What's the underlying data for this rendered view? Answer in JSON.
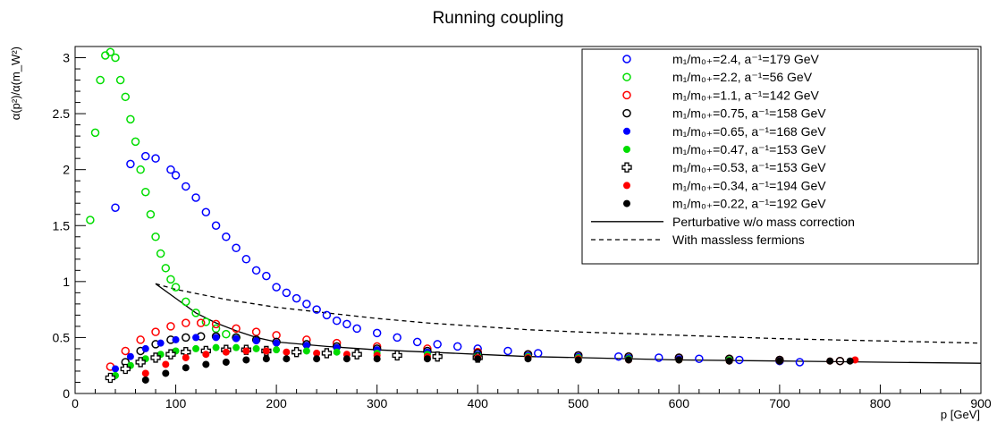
{
  "chart_data": {
    "type": "scatter",
    "title": "Running coupling",
    "xlabel": "p [GeV]",
    "ylabel": "α(p²)/α(m_W²)",
    "xlim": [
      0,
      900
    ],
    "ylim": [
      0,
      3.1
    ],
    "x_ticks": [
      "0",
      "100",
      "200",
      "300",
      "400",
      "500",
      "600",
      "700",
      "800",
      "900"
    ],
    "y_ticks": [
      "0",
      "0.5",
      "1",
      "1.5",
      "2",
      "2.5",
      "3"
    ],
    "grid": false,
    "legend_position": "top-right",
    "series": [
      {
        "name": "m₁/m₀₊=2.4, a⁻¹=179 GeV",
        "color": "#0000ff",
        "marker": "open-circle",
        "x": [
          40,
          55,
          70,
          80,
          95,
          100,
          110,
          120,
          130,
          140,
          150,
          160,
          170,
          180,
          190,
          200,
          210,
          220,
          230,
          240,
          250,
          260,
          270,
          280,
          300,
          320,
          340,
          360,
          380,
          400,
          430,
          460,
          500,
          540,
          580,
          620,
          660,
          700,
          720
        ],
        "y": [
          1.66,
          2.05,
          2.12,
          2.1,
          2.0,
          1.95,
          1.85,
          1.75,
          1.62,
          1.5,
          1.4,
          1.3,
          1.2,
          1.1,
          1.05,
          0.95,
          0.9,
          0.85,
          0.8,
          0.75,
          0.7,
          0.65,
          0.62,
          0.58,
          0.54,
          0.5,
          0.46,
          0.44,
          0.42,
          0.4,
          0.38,
          0.36,
          0.34,
          0.33,
          0.32,
          0.31,
          0.3,
          0.29,
          0.28
        ]
      },
      {
        "name": "m₁/m₀₊=2.2, a⁻¹=56 GeV",
        "color": "#00dd00",
        "marker": "open-circle",
        "x": [
          15,
          20,
          25,
          30,
          35,
          40,
          45,
          50,
          55,
          60,
          65,
          70,
          75,
          80,
          85,
          90,
          95,
          100,
          110,
          120,
          130,
          140,
          150,
          160
        ],
        "y": [
          1.55,
          2.33,
          2.8,
          3.02,
          3.05,
          3.0,
          2.8,
          2.65,
          2.45,
          2.25,
          2.0,
          1.8,
          1.6,
          1.4,
          1.25,
          1.12,
          1.02,
          0.95,
          0.82,
          0.72,
          0.64,
          0.58,
          0.53,
          0.5
        ]
      },
      {
        "name": "m₁/m₀₊=1.1, a⁻¹=142 GeV",
        "color": "#ff0000",
        "marker": "open-circle",
        "x": [
          35,
          50,
          65,
          80,
          95,
          110,
          125,
          140,
          160,
          180,
          200,
          230,
          260,
          300,
          350,
          400,
          450,
          500,
          550,
          600,
          650,
          700,
          760
        ],
        "y": [
          0.24,
          0.38,
          0.48,
          0.55,
          0.6,
          0.63,
          0.63,
          0.62,
          0.58,
          0.55,
          0.52,
          0.48,
          0.45,
          0.42,
          0.4,
          0.37,
          0.35,
          0.34,
          0.33,
          0.32,
          0.31,
          0.3,
          0.29
        ]
      },
      {
        "name": "m₁/m₀₊=0.75, a⁻¹=158 GeV",
        "color": "#000000",
        "marker": "open-circle",
        "x": [
          50,
          65,
          80,
          95,
          110,
          125,
          140,
          160,
          180,
          200,
          230,
          260,
          300,
          350,
          400,
          450,
          500,
          550,
          600,
          650,
          700,
          760
        ],
        "y": [
          0.28,
          0.38,
          0.44,
          0.48,
          0.5,
          0.51,
          0.51,
          0.5,
          0.48,
          0.46,
          0.44,
          0.42,
          0.4,
          0.38,
          0.36,
          0.35,
          0.34,
          0.33,
          0.32,
          0.31,
          0.3,
          0.29
        ]
      },
      {
        "name": "m₁/m₀₊=0.65, a⁻¹=168 GeV",
        "color": "#0000ff",
        "marker": "filled-circle",
        "x": [
          40,
          55,
          70,
          85,
          100,
          120,
          140,
          160,
          180,
          200,
          230,
          260,
          300,
          350,
          400,
          450,
          500,
          550,
          600,
          650,
          700
        ],
        "y": [
          0.22,
          0.33,
          0.4,
          0.45,
          0.48,
          0.5,
          0.5,
          0.49,
          0.47,
          0.45,
          0.43,
          0.41,
          0.39,
          0.37,
          0.35,
          0.34,
          0.33,
          0.32,
          0.31,
          0.3,
          0.29
        ]
      },
      {
        "name": "m₁/m₀₊=0.47, a⁻¹=153 GeV",
        "color": "#00dd00",
        "marker": "filled-circle",
        "x": [
          40,
          55,
          70,
          85,
          100,
          120,
          140,
          160,
          180,
          200,
          230,
          260,
          300,
          350,
          400,
          450,
          500,
          550,
          600,
          650,
          700
        ],
        "y": [
          0.16,
          0.25,
          0.31,
          0.35,
          0.38,
          0.4,
          0.41,
          0.41,
          0.4,
          0.39,
          0.38,
          0.37,
          0.36,
          0.35,
          0.34,
          0.33,
          0.32,
          0.31,
          0.3,
          0.3,
          0.29
        ]
      },
      {
        "name": "m₁/m₀₊=0.53, a⁻¹=153 GeV",
        "color": "#000000",
        "marker": "open-cross",
        "x": [
          35,
          50,
          65,
          80,
          95,
          110,
          130,
          150,
          170,
          190,
          220,
          250,
          280,
          320,
          360,
          400
        ],
        "y": [
          0.14,
          0.22,
          0.28,
          0.32,
          0.35,
          0.37,
          0.38,
          0.39,
          0.39,
          0.38,
          0.37,
          0.36,
          0.35,
          0.34,
          0.33,
          0.32
        ]
      },
      {
        "name": "m₁/m₀₊=0.34, a⁻¹=194 GeV",
        "color": "#ff0000",
        "marker": "filled-circle",
        "x": [
          70,
          90,
          110,
          130,
          150,
          170,
          190,
          210,
          240,
          270,
          300,
          350,
          400,
          450,
          500,
          550,
          600,
          650,
          700,
          750,
          775
        ],
        "y": [
          0.18,
          0.26,
          0.32,
          0.35,
          0.37,
          0.38,
          0.38,
          0.37,
          0.36,
          0.35,
          0.34,
          0.33,
          0.32,
          0.32,
          0.31,
          0.3,
          0.3,
          0.29,
          0.29,
          0.29,
          0.3
        ]
      },
      {
        "name": "m₁/m₀₊=0.22, a⁻¹=192 GeV",
        "color": "#000000",
        "marker": "filled-circle",
        "x": [
          70,
          90,
          110,
          130,
          150,
          170,
          190,
          210,
          240,
          270,
          300,
          350,
          400,
          450,
          500,
          550,
          600,
          650,
          700,
          750,
          770
        ],
        "y": [
          0.12,
          0.18,
          0.23,
          0.26,
          0.28,
          0.3,
          0.31,
          0.31,
          0.31,
          0.31,
          0.31,
          0.31,
          0.31,
          0.31,
          0.3,
          0.3,
          0.3,
          0.29,
          0.29,
          0.29,
          0.29
        ]
      },
      {
        "name": "Perturbative w/o mass correction",
        "color": "#000000",
        "marker": "solid-line",
        "x": [
          80,
          100,
          120,
          140,
          160,
          180,
          200,
          250,
          300,
          350,
          400,
          450,
          500,
          600,
          700,
          800,
          900
        ],
        "y": [
          0.98,
          0.85,
          0.72,
          0.63,
          0.56,
          0.5,
          0.46,
          0.42,
          0.39,
          0.37,
          0.35,
          0.33,
          0.32,
          0.3,
          0.29,
          0.28,
          0.27
        ]
      },
      {
        "name": "With massless fermions",
        "color": "#000000",
        "marker": "dashed-line",
        "x": [
          80,
          100,
          150,
          200,
          250,
          300,
          350,
          400,
          450,
          500,
          600,
          700,
          800,
          900
        ],
        "y": [
          0.98,
          0.93,
          0.84,
          0.77,
          0.72,
          0.67,
          0.63,
          0.6,
          0.57,
          0.55,
          0.52,
          0.49,
          0.47,
          0.45
        ]
      }
    ]
  }
}
